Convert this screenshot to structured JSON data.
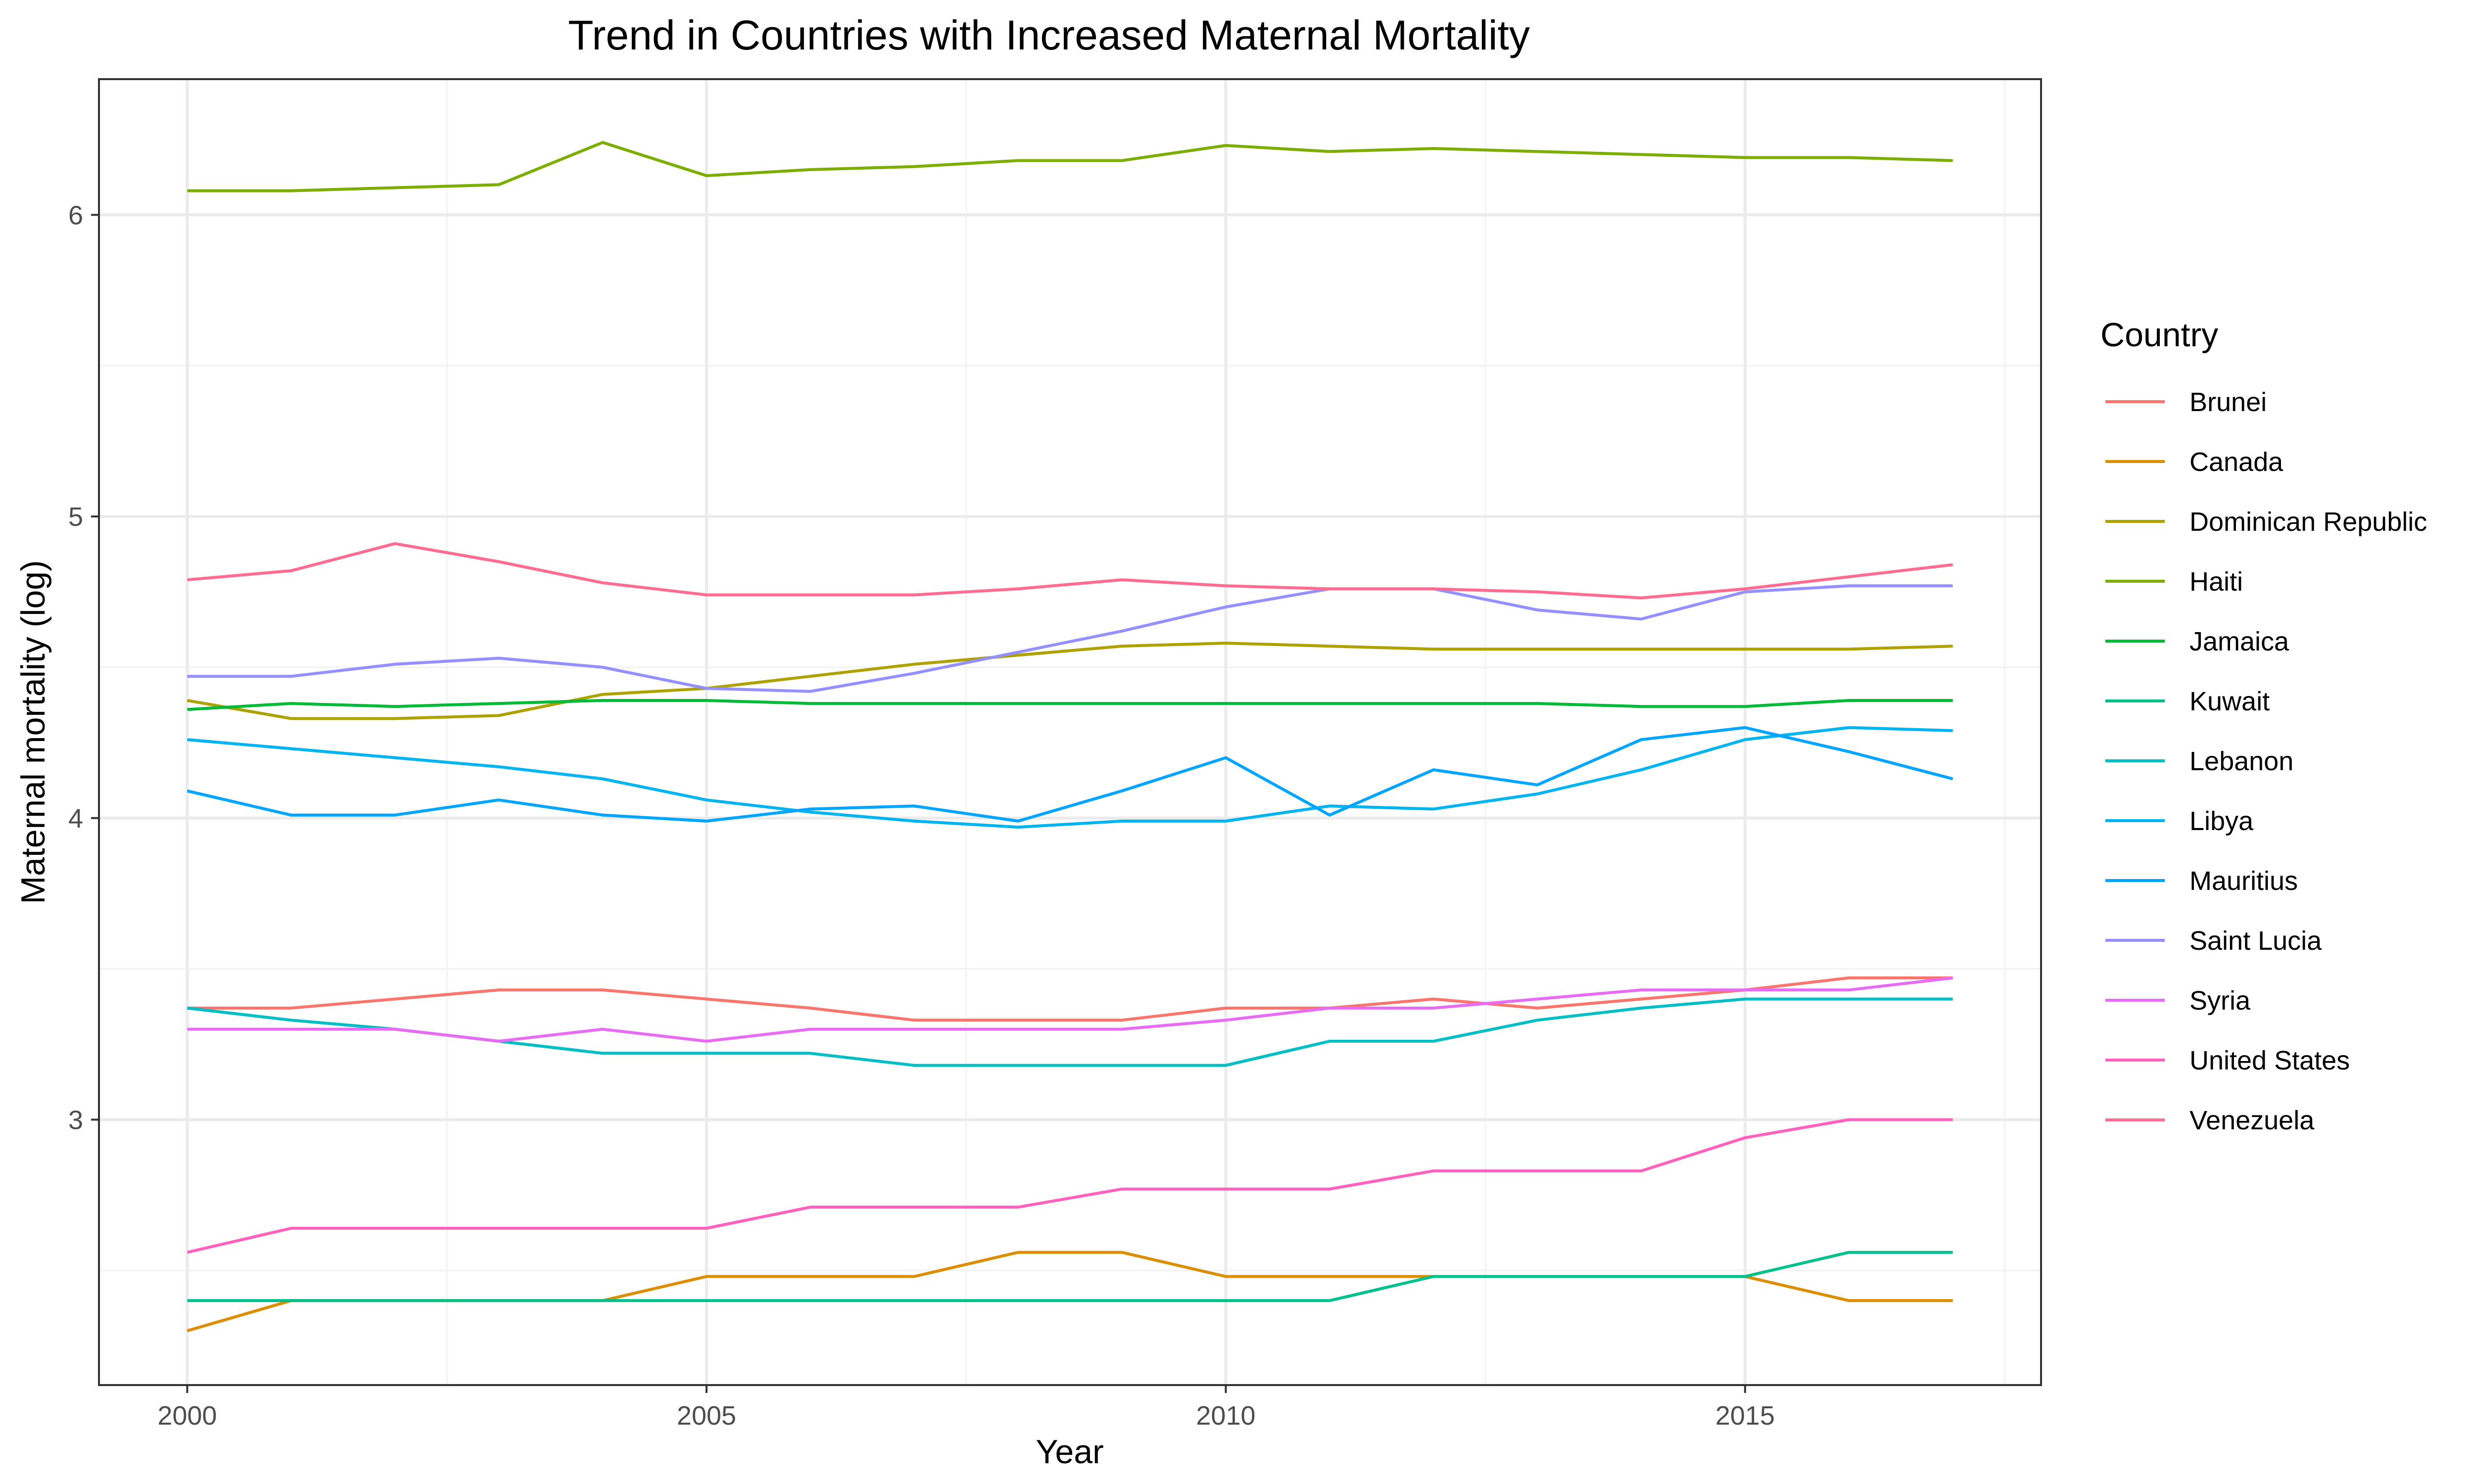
{
  "chart_data": {
    "type": "line",
    "title": "Trend in Countries with Increased Maternal Mortality",
    "xlabel": "Year",
    "ylabel": "Maternal mortality (log)",
    "xlim": [
      1999.15,
      2017.85
    ],
    "ylim": [
      2.12,
      6.45
    ],
    "x_ticks": [
      2000,
      2005,
      2010,
      2015
    ],
    "y_ticks": [
      3,
      4,
      5,
      6
    ],
    "x_minor": [
      2002.5,
      2007.5,
      2012.5,
      2017.5
    ],
    "y_minor": [
      2.5,
      3.5,
      4.5,
      5.5
    ],
    "grid": true,
    "legend_title": "Country",
    "legend_position": "right",
    "x": [
      2000,
      2001,
      2002,
      2003,
      2004,
      2005,
      2006,
      2007,
      2008,
      2009,
      2010,
      2011,
      2012,
      2013,
      2014,
      2015,
      2016,
      2017
    ],
    "series": [
      {
        "name": "Brunei",
        "color": "#F8766D",
        "values": [
          3.37,
          3.37,
          3.4,
          3.43,
          3.43,
          3.4,
          3.37,
          3.33,
          3.33,
          3.33,
          3.37,
          3.37,
          3.4,
          3.37,
          3.4,
          3.43,
          3.47,
          3.47
        ]
      },
      {
        "name": "Canada",
        "color": "#DB8E00",
        "values": [
          2.3,
          2.4,
          2.4,
          2.4,
          2.4,
          2.48,
          2.48,
          2.48,
          2.56,
          2.56,
          2.48,
          2.48,
          2.48,
          2.48,
          2.48,
          2.48,
          2.4,
          2.4
        ]
      },
      {
        "name": "Dominican Republic",
        "color": "#AEA200",
        "values": [
          4.39,
          4.33,
          4.33,
          4.34,
          4.41,
          4.43,
          4.47,
          4.51,
          4.54,
          4.57,
          4.58,
          4.57,
          4.56,
          4.56,
          4.56,
          4.56,
          4.56,
          4.57
        ]
      },
      {
        "name": "Haiti",
        "color": "#7CAE00",
        "values": [
          6.08,
          6.08,
          6.09,
          6.1,
          6.24,
          6.13,
          6.15,
          6.16,
          6.18,
          6.18,
          6.23,
          6.21,
          6.22,
          6.21,
          6.2,
          6.19,
          6.19,
          6.18
        ]
      },
      {
        "name": "Jamaica",
        "color": "#00BA38",
        "values": [
          4.36,
          4.38,
          4.37,
          4.38,
          4.39,
          4.39,
          4.38,
          4.38,
          4.38,
          4.38,
          4.38,
          4.38,
          4.38,
          4.38,
          4.37,
          4.37,
          4.39,
          4.39
        ]
      },
      {
        "name": "Kuwait",
        "color": "#00C08B",
        "values": [
          2.4,
          2.4,
          2.4,
          2.4,
          2.4,
          2.4,
          2.4,
          2.4,
          2.4,
          2.4,
          2.4,
          2.4,
          2.48,
          2.48,
          2.48,
          2.48,
          2.56,
          2.56
        ]
      },
      {
        "name": "Lebanon",
        "color": "#00BFC4",
        "values": [
          3.37,
          3.33,
          3.3,
          3.26,
          3.22,
          3.22,
          3.22,
          3.18,
          3.18,
          3.18,
          3.18,
          3.26,
          3.26,
          3.33,
          3.37,
          3.4,
          3.4,
          3.4
        ]
      },
      {
        "name": "Libya",
        "color": "#00B4EF",
        "values": [
          4.26,
          4.23,
          4.2,
          4.17,
          4.13,
          4.06,
          4.02,
          3.99,
          3.97,
          3.99,
          3.99,
          4.04,
          4.03,
          4.08,
          4.16,
          4.26,
          4.3,
          4.29
        ]
      },
      {
        "name": "Mauritius",
        "color": "#00A5FF",
        "values": [
          4.09,
          4.01,
          4.01,
          4.06,
          4.01,
          3.99,
          4.03,
          4.04,
          3.99,
          4.09,
          4.2,
          4.01,
          4.16,
          4.11,
          4.26,
          4.3,
          4.22,
          4.13
        ]
      },
      {
        "name": "Saint Lucia",
        "color": "#9590FF",
        "values": [
          4.47,
          4.47,
          4.51,
          4.53,
          4.5,
          4.43,
          4.42,
          4.48,
          4.55,
          4.62,
          4.7,
          4.76,
          4.76,
          4.69,
          4.66,
          4.75,
          4.77,
          4.77
        ]
      },
      {
        "name": "Syria",
        "color": "#E76BF3",
        "values": [
          3.3,
          3.3,
          3.3,
          3.26,
          3.3,
          3.26,
          3.3,
          3.3,
          3.3,
          3.3,
          3.33,
          3.37,
          3.37,
          3.4,
          3.43,
          3.43,
          3.43,
          3.47
        ]
      },
      {
        "name": "United States",
        "color": "#FF62BC",
        "values": [
          2.56,
          2.64,
          2.64,
          2.64,
          2.64,
          2.64,
          2.71,
          2.71,
          2.71,
          2.77,
          2.77,
          2.77,
          2.83,
          2.83,
          2.83,
          2.94,
          3.0,
          3.0
        ]
      },
      {
        "name": "Venezuela",
        "color": "#FF6C91",
        "values": [
          4.79,
          4.82,
          4.91,
          4.85,
          4.78,
          4.74,
          4.74,
          4.74,
          4.76,
          4.79,
          4.77,
          4.76,
          4.76,
          4.75,
          4.73,
          4.76,
          4.8,
          4.84
        ]
      }
    ]
  }
}
